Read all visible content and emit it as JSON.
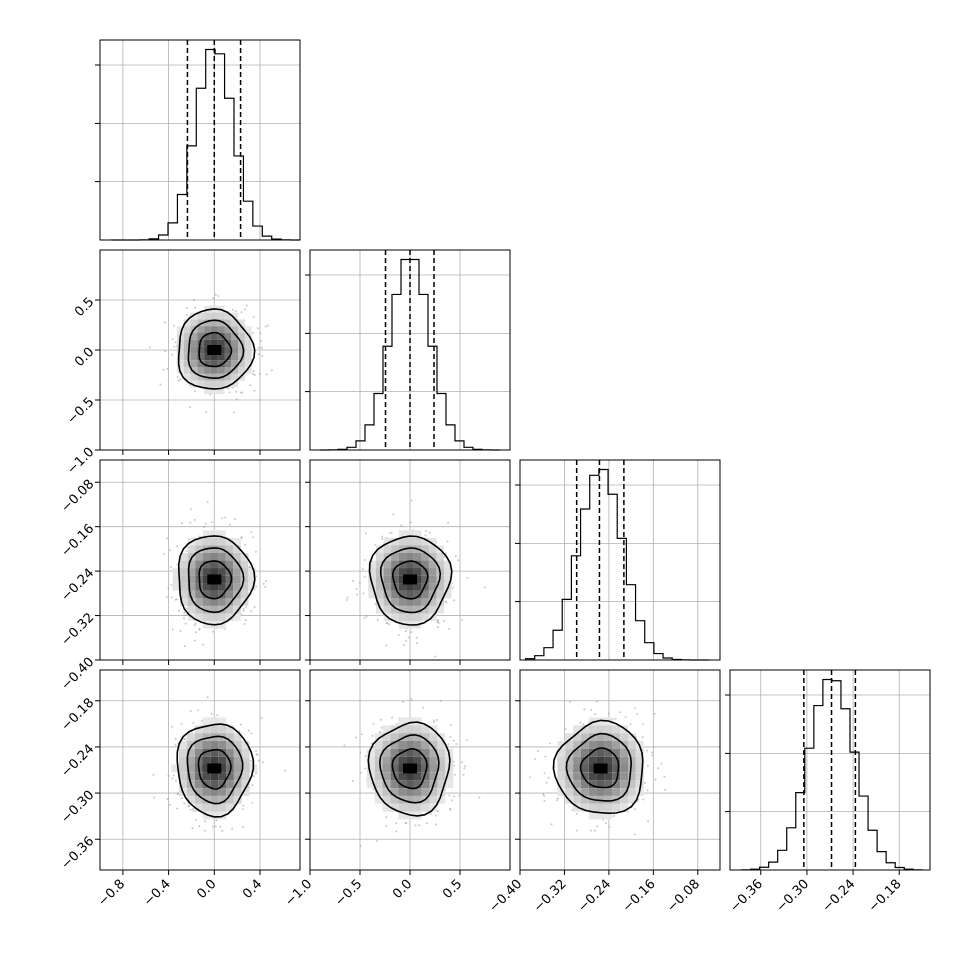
{
  "chart_data": {
    "type": "corner",
    "n_params": 4,
    "quantile_lines": "dashed",
    "grid": true,
    "params": [
      {
        "range": [
          -1.0,
          0.75
        ],
        "ticks": [
          -0.8,
          -0.4,
          0.0,
          0.4
        ],
        "tick_labels": [
          "−0.8",
          "−0.4",
          "0.0",
          "0.4"
        ],
        "hist_range": [
          -0.9,
          0.75
        ],
        "mean": 0.0,
        "sd": 0.165,
        "quantiles": [
          -0.235,
          0.0,
          0.23
        ]
      },
      {
        "range": [
          -1.0,
          1.0
        ],
        "ticks": [
          -1.0,
          -0.5,
          0.0,
          0.5
        ],
        "tick_labels": [
          "−1.0",
          "−0.5",
          "0.0",
          "0.5"
        ],
        "hist_range": [
          -0.9,
          0.9
        ],
        "mean": 0.0,
        "sd": 0.2,
        "quantiles": [
          -0.245,
          0.0,
          0.24
        ]
      },
      {
        "range": [
          -0.4,
          -0.04
        ],
        "ticks": [
          -0.4,
          -0.32,
          -0.24,
          -0.16,
          -0.08
        ],
        "tick_labels": [
          "−0.40",
          "−0.32",
          "−0.24",
          "−0.16",
          "−0.08"
        ],
        "hist_range": [
          -0.39,
          -0.06
        ],
        "mean": -0.255,
        "sd": 0.04,
        "quantiles": [
          -0.298,
          -0.257,
          -0.213
        ]
      },
      {
        "range": [
          -0.4,
          -0.14
        ],
        "ticks": [
          -0.36,
          -0.3,
          -0.24,
          -0.18
        ],
        "tick_labels": [
          "−0.36",
          "−0.30",
          "−0.24",
          "−0.18"
        ],
        "hist_range": [
          -0.385,
          -0.15
        ],
        "mean": -0.268,
        "sd": 0.03,
        "quantiles": [
          -0.304,
          -0.268,
          -0.237
        ]
      }
    ]
  }
}
